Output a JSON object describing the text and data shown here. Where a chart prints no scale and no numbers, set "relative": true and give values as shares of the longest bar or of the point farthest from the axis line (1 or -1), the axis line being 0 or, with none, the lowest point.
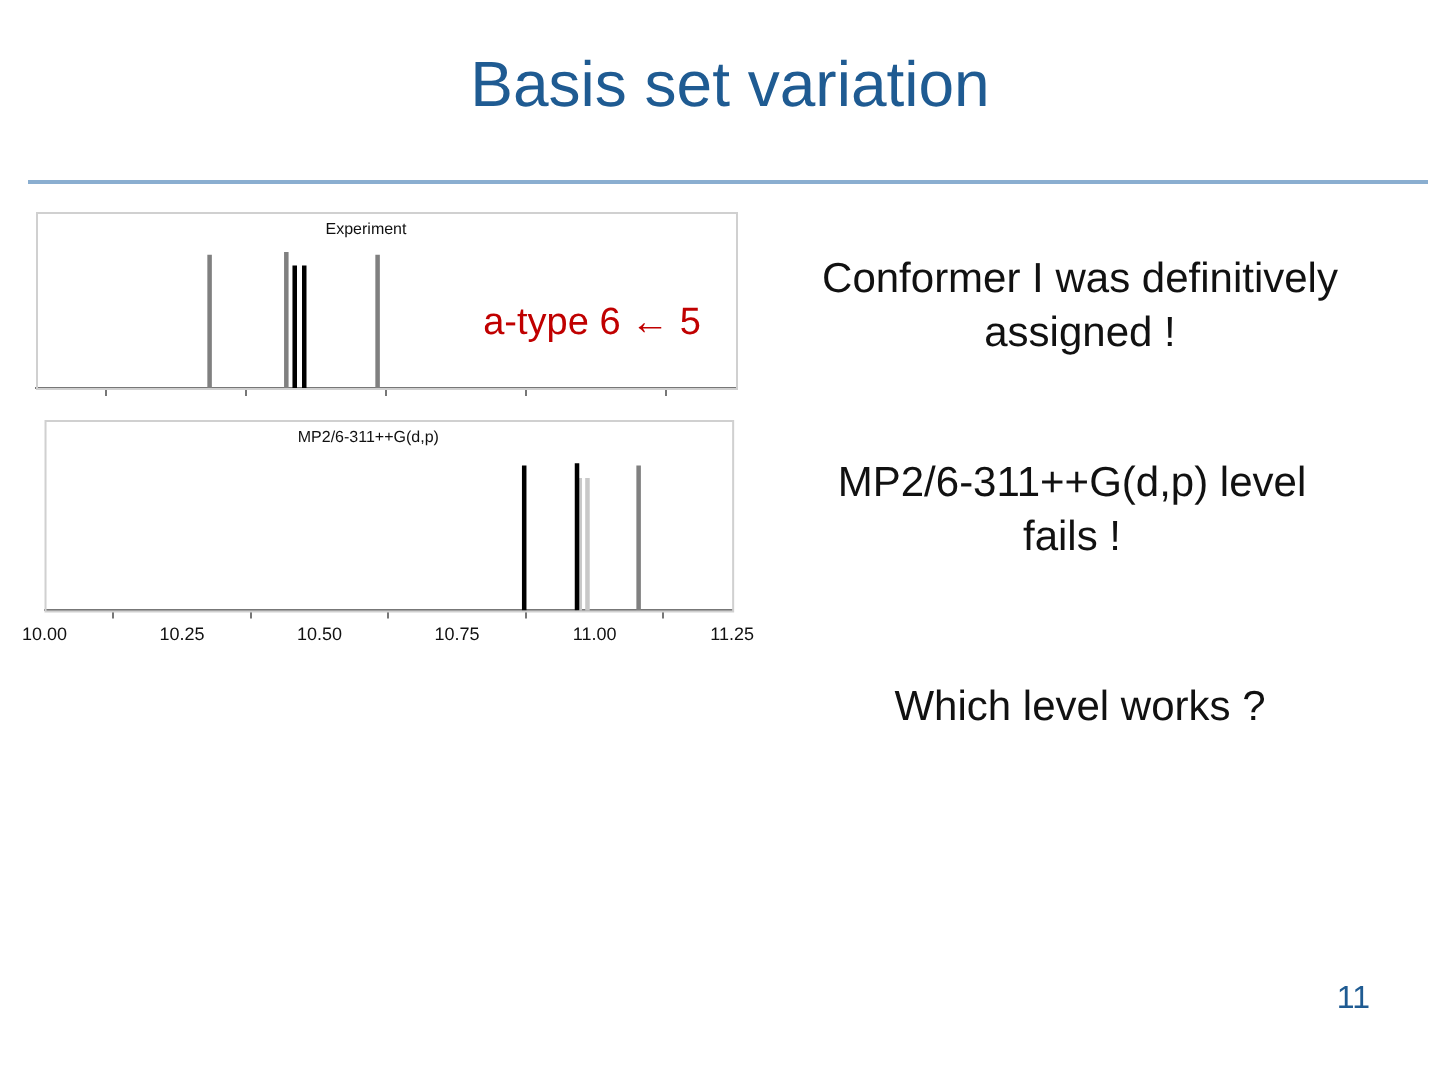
{
  "chart_data": [
    {
      "type": "bar",
      "title": "Experiment",
      "relative": true,
      "xlim": [
        10.0,
        11.25
      ],
      "xticks": [
        {
          "value": 10.0,
          "label": null
        },
        {
          "value": 10.25,
          "label": null
        },
        {
          "value": 10.5,
          "label": null
        },
        {
          "value": 10.75,
          "label": null
        },
        {
          "value": 11.0,
          "label": null
        },
        {
          "value": 11.25,
          "label": null
        }
      ],
      "tick_labels": false,
      "legend": false,
      "grid": false,
      "annotations": [
        "Basis set variation",
        "a-type 6 ← 5",
        "Conformer I was definitively assigned !",
        "MP2/6-311++G(d,p) level fails !",
        "Which level works ?",
        "11"
      ],
      "series": [
        {
          "color": "#808080",
          "x": [
            10.31,
            10.447,
            10.61
          ],
          "values": [
            0.98,
            1,
            0.98
          ]
        },
        {
          "color": "#000000",
          "x": [
            10.462,
            10.479
          ],
          "values": [
            0.9,
            0.9
          ]
        }
      ]
    },
    {
      "type": "bar",
      "title": "MP2/6-311++G(d,p)",
      "relative": true,
      "xlim": [
        10.0,
        11.25
      ],
      "xticks": [
        {
          "value": 10.0,
          "label": "10.00"
        },
        {
          "value": 10.25,
          "label": "10.25"
        },
        {
          "value": 10.5,
          "label": "10.50"
        },
        {
          "value": 10.75,
          "label": "10.75"
        },
        {
          "value": 11.0,
          "label": "11.00"
        },
        {
          "value": 11.25,
          "label": "11.25"
        }
      ],
      "tick_labels": "x",
      "legend": false,
      "grid": false,
      "series": [
        {
          "color": "#000000",
          "x": [
            10.872,
            10.968
          ],
          "values": [
            0.985,
            1
          ]
        },
        {
          "color": "#c8c8c8",
          "x": [
            10.973,
            10.987
          ],
          "values": [
            0.9,
            0.9
          ]
        },
        {
          "color": "#808080",
          "x": [
            11.08
          ],
          "values": [
            0.985
          ]
        }
      ]
    }
  ]
}
